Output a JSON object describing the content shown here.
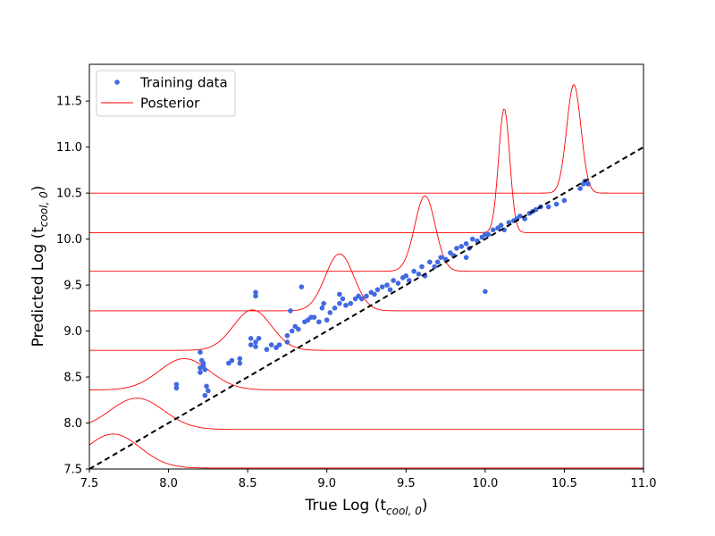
{
  "chart_data": {
    "type": "scatter",
    "title": "",
    "xlabel": {
      "main": "True Log (t",
      "sub": "cool, 0",
      "tail": ")"
    },
    "ylabel": {
      "main": "Predicted Log (t",
      "sub": "cool, 0",
      "tail": ")"
    },
    "xlim": [
      7.5,
      11.0
    ],
    "ylim": [
      7.5,
      11.9
    ],
    "xticks": [
      "7.5",
      "8.0",
      "8.5",
      "9.0",
      "9.5",
      "10.0",
      "10.5",
      "11.0"
    ],
    "yticks": [
      "7.5",
      "8.0",
      "8.5",
      "9.0",
      "9.5",
      "10.0",
      "10.5",
      "11.0",
      "11.5"
    ],
    "legend": {
      "position": "top-left",
      "entries": [
        {
          "label": "Training data",
          "marker": "dot",
          "color": "#4169e1"
        },
        {
          "label": "Posterior",
          "marker": "line",
          "color": "#ff0000"
        }
      ]
    },
    "identity_line": {
      "style": "dashed",
      "color": "#000000",
      "from": [
        7.5,
        7.5
      ],
      "to": [
        11.0,
        11.0
      ]
    },
    "training_points": [
      [
        8.05,
        8.38
      ],
      [
        8.05,
        8.42
      ],
      [
        8.2,
        8.55
      ],
      [
        8.2,
        8.6
      ],
      [
        8.22,
        8.65
      ],
      [
        8.21,
        8.68
      ],
      [
        8.23,
        8.58
      ],
      [
        8.22,
        8.62
      ],
      [
        8.2,
        8.77
      ],
      [
        8.24,
        8.4
      ],
      [
        8.25,
        8.35
      ],
      [
        8.23,
        8.3
      ],
      [
        8.38,
        8.65
      ],
      [
        8.4,
        8.68
      ],
      [
        8.45,
        8.65
      ],
      [
        8.45,
        8.7
      ],
      [
        8.52,
        8.85
      ],
      [
        8.55,
        8.83
      ],
      [
        8.55,
        8.88
      ],
      [
        8.57,
        8.92
      ],
      [
        8.52,
        8.92
      ],
      [
        8.55,
        9.38
      ],
      [
        8.55,
        9.42
      ],
      [
        8.62,
        8.8
      ],
      [
        8.65,
        8.85
      ],
      [
        8.68,
        8.82
      ],
      [
        8.7,
        8.85
      ],
      [
        8.75,
        8.88
      ],
      [
        8.75,
        8.95
      ],
      [
        8.77,
        9.22
      ],
      [
        8.78,
        9.0
      ],
      [
        8.8,
        9.05
      ],
      [
        8.82,
        9.02
      ],
      [
        8.84,
        9.48
      ],
      [
        8.86,
        9.1
      ],
      [
        8.88,
        9.12
      ],
      [
        8.9,
        9.15
      ],
      [
        8.92,
        9.15
      ],
      [
        8.95,
        9.1
      ],
      [
        8.97,
        9.25
      ],
      [
        8.98,
        9.3
      ],
      [
        9.0,
        9.12
      ],
      [
        9.02,
        9.2
      ],
      [
        9.05,
        9.25
      ],
      [
        9.08,
        9.3
      ],
      [
        9.08,
        9.4
      ],
      [
        9.1,
        9.35
      ],
      [
        9.12,
        9.28
      ],
      [
        9.15,
        9.3
      ],
      [
        9.18,
        9.35
      ],
      [
        9.2,
        9.38
      ],
      [
        9.22,
        9.35
      ],
      [
        9.25,
        9.38
      ],
      [
        9.28,
        9.42
      ],
      [
        9.3,
        9.4
      ],
      [
        9.32,
        9.45
      ],
      [
        9.35,
        9.48
      ],
      [
        9.38,
        9.5
      ],
      [
        9.4,
        9.45
      ],
      [
        9.42,
        9.55
      ],
      [
        9.45,
        9.52
      ],
      [
        9.48,
        9.58
      ],
      [
        9.5,
        9.6
      ],
      [
        9.52,
        9.55
      ],
      [
        9.55,
        9.65
      ],
      [
        9.58,
        9.62
      ],
      [
        9.6,
        9.7
      ],
      [
        9.62,
        9.6
      ],
      [
        9.65,
        9.75
      ],
      [
        9.68,
        9.7
      ],
      [
        9.7,
        9.75
      ],
      [
        9.72,
        9.8
      ],
      [
        9.75,
        9.78
      ],
      [
        9.78,
        9.85
      ],
      [
        9.8,
        9.82
      ],
      [
        9.82,
        9.9
      ],
      [
        9.85,
        9.92
      ],
      [
        9.88,
        9.95
      ],
      [
        9.9,
        9.9
      ],
      [
        9.92,
        10.0
      ],
      [
        9.95,
        9.98
      ],
      [
        9.98,
        10.02
      ],
      [
        10.0,
        10.05
      ],
      [
        10.02,
        10.05
      ],
      [
        10.05,
        10.1
      ],
      [
        10.08,
        10.12
      ],
      [
        10.1,
        10.15
      ],
      [
        10.12,
        10.1
      ],
      [
        10.15,
        10.18
      ],
      [
        10.18,
        10.2
      ],
      [
        10.2,
        10.22
      ],
      [
        10.22,
        10.25
      ],
      [
        10.25,
        10.22
      ],
      [
        10.28,
        10.28
      ],
      [
        10.3,
        10.3
      ],
      [
        10.32,
        10.32
      ],
      [
        10.35,
        10.35
      ],
      [
        10.4,
        10.35
      ],
      [
        10.45,
        10.38
      ],
      [
        10.5,
        10.42
      ],
      [
        10.6,
        10.55
      ],
      [
        10.62,
        10.6
      ],
      [
        10.63,
        10.63
      ],
      [
        10.65,
        10.6
      ],
      [
        10.0,
        9.43
      ],
      [
        9.88,
        9.8
      ]
    ],
    "posteriors": [
      {
        "baseline": 7.51,
        "peak_x": 7.65,
        "amplitude": 0.37,
        "sigma": 0.17
      },
      {
        "baseline": 7.93,
        "peak_x": 7.8,
        "amplitude": 0.34,
        "sigma": 0.17
      },
      {
        "baseline": 8.36,
        "peak_x": 8.1,
        "amplitude": 0.34,
        "sigma": 0.16
      },
      {
        "baseline": 8.79,
        "peak_x": 8.53,
        "amplitude": 0.44,
        "sigma": 0.12
      },
      {
        "baseline": 9.22,
        "peak_x": 9.08,
        "amplitude": 0.62,
        "sigma": 0.09
      },
      {
        "baseline": 9.65,
        "peak_x": 9.62,
        "amplitude": 0.82,
        "sigma": 0.065
      },
      {
        "baseline": 10.07,
        "peak_x": 10.12,
        "amplitude": 1.35,
        "sigma": 0.035
      },
      {
        "baseline": 10.5,
        "peak_x": 10.56,
        "amplitude": 1.18,
        "sigma": 0.045
      }
    ]
  }
}
